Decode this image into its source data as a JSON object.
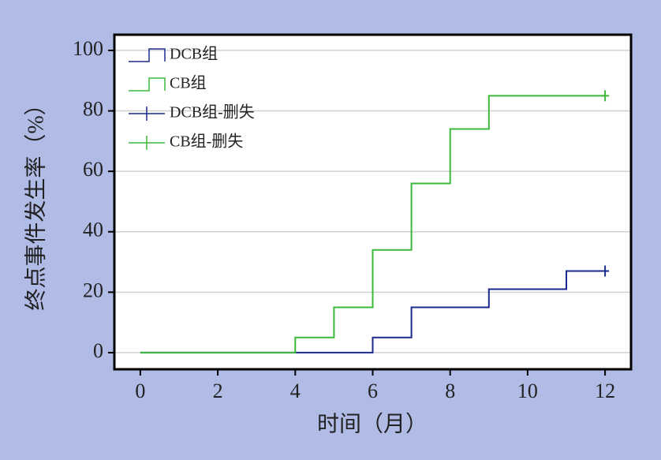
{
  "chart_data": {
    "type": "step",
    "xlabel": "时间（月）",
    "ylabel": "终点事件发生率（%）",
    "xlim": [
      -0.67,
      12.67
    ],
    "ylim": [
      -5.5,
      105.2
    ],
    "xticks": [
      0,
      2,
      4,
      6,
      8,
      10,
      12
    ],
    "yticks": [
      0,
      20,
      40,
      60,
      80,
      100
    ],
    "grid": true,
    "legend": "upper left",
    "series": [
      {
        "name": "DCB组",
        "color": "#1a2a8c",
        "kind": "step",
        "x": [
          0,
          6,
          7,
          9,
          11,
          12
        ],
        "values": [
          0,
          5,
          15,
          21,
          27,
          27
        ]
      },
      {
        "name": "CB组",
        "color": "#3cb83c",
        "kind": "step",
        "x": [
          0,
          4,
          5,
          6,
          7,
          8,
          9,
          12
        ],
        "values": [
          0,
          5,
          15,
          34,
          56,
          74,
          85,
          85
        ]
      },
      {
        "name": "DCB组-删失",
        "color": "#1a2a8c",
        "kind": "censor",
        "x": [
          12
        ],
        "values": [
          27
        ]
      },
      {
        "name": "CB组-删失",
        "color": "#3cb83c",
        "kind": "censor",
        "x": [
          12
        ],
        "values": [
          85
        ]
      }
    ]
  }
}
